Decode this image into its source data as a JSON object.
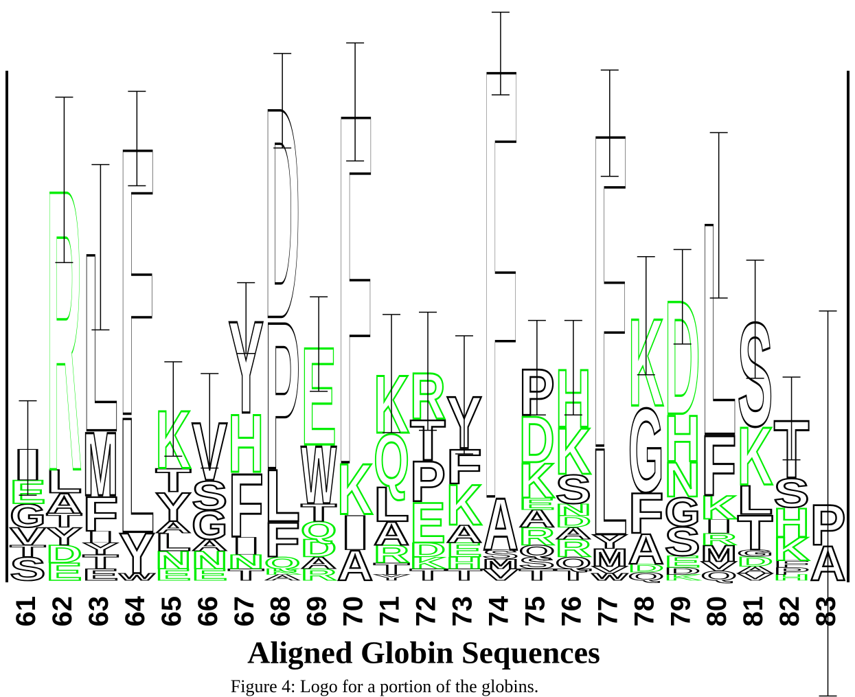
{
  "chart_data": {
    "type": "logo",
    "title": "Aligned Globin Sequences",
    "caption": "Figure 4: Logo for a portion of the globins.",
    "ylim": [
      0,
      4.32
    ],
    "positions": [
      {
        "label": "61",
        "error": 0.4,
        "letters": [
          {
            "letter": "S",
            "color": "#000000",
            "value": 0.2
          },
          {
            "letter": "T",
            "color": "#000000",
            "value": 0.1
          },
          {
            "letter": "V",
            "color": "#000000",
            "value": 0.15
          },
          {
            "letter": "G",
            "color": "#000000",
            "value": 0.2
          },
          {
            "letter": "E",
            "color": "#00ee00",
            "value": 0.2
          },
          {
            "letter": "I",
            "color": "#000000",
            "value": 0.27
          }
        ]
      },
      {
        "label": "62",
        "error": 0.7,
        "letters": [
          {
            "letter": "E",
            "color": "#00ee00",
            "value": 0.15
          },
          {
            "letter": "D",
            "color": "#00ee00",
            "value": 0.15
          },
          {
            "letter": "Y",
            "color": "#000000",
            "value": 0.15
          },
          {
            "letter": "T",
            "color": "#000000",
            "value": 0.12
          },
          {
            "letter": "A",
            "color": "#000000",
            "value": 0.17
          },
          {
            "letter": "L",
            "color": "#000000",
            "value": 0.2
          },
          {
            "letter": "R",
            "color": "#00ee00",
            "value": 2.45
          }
        ]
      },
      {
        "label": "63",
        "error": 0.7,
        "letters": [
          {
            "letter": "E",
            "color": "#000000",
            "value": 0.1
          },
          {
            "letter": "T",
            "color": "#000000",
            "value": 0.12
          },
          {
            "letter": "Y",
            "color": "#000000",
            "value": 0.1
          },
          {
            "letter": "I",
            "color": "#000000",
            "value": 0.1
          },
          {
            "letter": "F",
            "color": "#000000",
            "value": 0.3
          },
          {
            "letter": "M",
            "color": "#000000",
            "value": 0.55
          },
          {
            "letter": "L",
            "color": "#000000",
            "value": 1.55
          }
        ]
      },
      {
        "label": "64",
        "error": 0.4,
        "letters": [
          {
            "letter": "W",
            "color": "#000000",
            "value": 0.06
          },
          {
            "letter": "Y",
            "color": "#000000",
            "value": 0.35
          },
          {
            "letter": "L",
            "color": "#000000",
            "value": 1.0
          },
          {
            "letter": "F",
            "color": "#000000",
            "value": 2.33
          }
        ]
      },
      {
        "label": "65",
        "error": 0.4,
        "letters": [
          {
            "letter": "E",
            "color": "#00ee00",
            "value": 0.1
          },
          {
            "letter": "N",
            "color": "#00ee00",
            "value": 0.15
          },
          {
            "letter": "L",
            "color": "#000000",
            "value": 0.15
          },
          {
            "letter": "A",
            "color": "#000000",
            "value": 0.1
          },
          {
            "letter": "Y",
            "color": "#000000",
            "value": 0.25
          },
          {
            "letter": "T",
            "color": "#000000",
            "value": 0.2
          },
          {
            "letter": "K",
            "color": "#00ee00",
            "value": 0.5
          }
        ]
      },
      {
        "label": "66",
        "error": 0.4,
        "letters": [
          {
            "letter": "E",
            "color": "#00ee00",
            "value": 0.1
          },
          {
            "letter": "N",
            "color": "#00ee00",
            "value": 0.15
          },
          {
            "letter": "A",
            "color": "#000000",
            "value": 0.1
          },
          {
            "letter": "G",
            "color": "#000000",
            "value": 0.25
          },
          {
            "letter": "S",
            "color": "#000000",
            "value": 0.25
          },
          {
            "letter": "V",
            "color": "#000000",
            "value": 0.5
          }
        ]
      },
      {
        "label": "67",
        "error": 0.3,
        "letters": [
          {
            "letter": "T",
            "color": "#000000",
            "value": 0.1
          },
          {
            "letter": "N",
            "color": "#00ee00",
            "value": 0.12
          },
          {
            "letter": "I",
            "color": "#000000",
            "value": 0.15
          },
          {
            "letter": "F",
            "color": "#000000",
            "value": 0.55
          },
          {
            "letter": "H",
            "color": "#00ee00",
            "value": 0.5
          },
          {
            "letter": "Y",
            "color": "#000000",
            "value": 0.8
          }
        ]
      },
      {
        "label": "68",
        "error": 0.4,
        "letters": [
          {
            "letter": "A",
            "color": "#000000",
            "value": 0.05
          },
          {
            "letter": "K",
            "color": "#00ee00",
            "value": 0.05
          },
          {
            "letter": "Q",
            "color": "#00ee00",
            "value": 0.1
          },
          {
            "letter": "F",
            "color": "#000000",
            "value": 0.3
          },
          {
            "letter": "L",
            "color": "#000000",
            "value": 0.45
          },
          {
            "letter": "P",
            "color": "#000000",
            "value": 1.28
          },
          {
            "letter": "D",
            "color": "#000000",
            "value": 1.83
          }
        ]
      },
      {
        "label": "69",
        "error": 0.4,
        "letters": [
          {
            "letter": "R",
            "color": "#00ee00",
            "value": 0.1
          },
          {
            "letter": "A",
            "color": "#000000",
            "value": 0.1
          },
          {
            "letter": "D",
            "color": "#00ee00",
            "value": 0.15
          },
          {
            "letter": "Q",
            "color": "#00ee00",
            "value": 0.15
          },
          {
            "letter": "T",
            "color": "#000000",
            "value": 0.15
          },
          {
            "letter": "W",
            "color": "#000000",
            "value": 0.5
          },
          {
            "letter": "E",
            "color": "#00ee00",
            "value": 0.85
          }
        ]
      },
      {
        "label": "70",
        "error": 0.5,
        "letters": [
          {
            "letter": "A",
            "color": "#000000",
            "value": 0.26
          },
          {
            "letter": "I",
            "color": "#000000",
            "value": 0.3
          },
          {
            "letter": "K",
            "color": "#00ee00",
            "value": 0.44
          },
          {
            "letter": "F",
            "color": "#000000",
            "value": 3.05
          }
        ]
      },
      {
        "label": "71",
        "error": 0.5,
        "letters": [
          {
            "letter": "Y",
            "color": "#000000",
            "value": 0.05
          },
          {
            "letter": "T",
            "color": "#000000",
            "value": 0.1
          },
          {
            "letter": "R",
            "color": "#00ee00",
            "value": 0.15
          },
          {
            "letter": "A",
            "color": "#000000",
            "value": 0.2
          },
          {
            "letter": "L",
            "color": "#000000",
            "value": 0.3
          },
          {
            "letter": "Q",
            "color": "#00ee00",
            "value": 0.45
          },
          {
            "letter": "K",
            "color": "#00ee00",
            "value": 0.5
          }
        ]
      },
      {
        "label": "72",
        "error": 0.5,
        "letters": [
          {
            "letter": "T",
            "color": "#000000",
            "value": 0.1
          },
          {
            "letter": "K",
            "color": "#00ee00",
            "value": 0.1
          },
          {
            "letter": "D",
            "color": "#00ee00",
            "value": 0.12
          },
          {
            "letter": "E",
            "color": "#00ee00",
            "value": 0.35
          },
          {
            "letter": "P",
            "color": "#000000",
            "value": 0.35
          },
          {
            "letter": "T",
            "color": "#000000",
            "value": 0.35
          },
          {
            "letter": "R",
            "color": "#00ee00",
            "value": 0.4
          }
        ]
      },
      {
        "label": "73",
        "error": 0.5,
        "letters": [
          {
            "letter": "T",
            "color": "#000000",
            "value": 0.1
          },
          {
            "letter": "H",
            "color": "#00ee00",
            "value": 0.1
          },
          {
            "letter": "E",
            "color": "#00ee00",
            "value": 0.12
          },
          {
            "letter": "A",
            "color": "#000000",
            "value": 0.15
          },
          {
            "letter": "K",
            "color": "#00ee00",
            "value": 0.35
          },
          {
            "letter": "F",
            "color": "#000000",
            "value": 0.3
          },
          {
            "letter": "Y",
            "color": "#000000",
            "value": 0.45
          }
        ]
      },
      {
        "label": "74",
        "error": 0.35,
        "letters": [
          {
            "letter": "V",
            "color": "#000000",
            "value": 0.1
          },
          {
            "letter": "M",
            "color": "#000000",
            "value": 0.08
          },
          {
            "letter": "S",
            "color": "#000000",
            "value": 0.08
          },
          {
            "letter": "A",
            "color": "#000000",
            "value": 0.45
          },
          {
            "letter": "F",
            "color": "#000000",
            "value": 3.75
          }
        ]
      },
      {
        "label": "75",
        "error": 0.4,
        "letters": [
          {
            "letter": "T",
            "color": "#000000",
            "value": 0.1
          },
          {
            "letter": "S",
            "color": "#000000",
            "value": 0.1
          },
          {
            "letter": "Q",
            "color": "#000000",
            "value": 0.1
          },
          {
            "letter": "R",
            "color": "#00ee00",
            "value": 0.15
          },
          {
            "letter": "A",
            "color": "#000000",
            "value": 0.15
          },
          {
            "letter": "E",
            "color": "#00ee00",
            "value": 0.1
          },
          {
            "letter": "K",
            "color": "#00ee00",
            "value": 0.3
          },
          {
            "letter": "D",
            "color": "#00ee00",
            "value": 0.4
          },
          {
            "letter": "P",
            "color": "#000000",
            "value": 0.4
          }
        ]
      },
      {
        "label": "76",
        "error": 0.4,
        "letters": [
          {
            "letter": "T",
            "color": "#000000",
            "value": 0.1
          },
          {
            "letter": "Q",
            "color": "#000000",
            "value": 0.1
          },
          {
            "letter": "R",
            "color": "#00ee00",
            "value": 0.15
          },
          {
            "letter": "A",
            "color": "#000000",
            "value": 0.1
          },
          {
            "letter": "D",
            "color": "#00ee00",
            "value": 0.1
          },
          {
            "letter": "N",
            "color": "#00ee00",
            "value": 0.1
          },
          {
            "letter": "S",
            "color": "#000000",
            "value": 0.25
          },
          {
            "letter": "K",
            "color": "#00ee00",
            "value": 0.4
          },
          {
            "letter": "H",
            "color": "#00ee00",
            "value": 0.5
          }
        ]
      },
      {
        "label": "77",
        "error": 0.45,
        "letters": [
          {
            "letter": "W",
            "color": "#000000",
            "value": 0.06
          },
          {
            "letter": "V",
            "color": "#000000",
            "value": 0.06
          },
          {
            "letter": "M",
            "color": "#000000",
            "value": 0.15
          },
          {
            "letter": "Y",
            "color": "#000000",
            "value": 0.12
          },
          {
            "letter": "L",
            "color": "#000000",
            "value": 0.75
          },
          {
            "letter": "F",
            "color": "#000000",
            "value": 2.73
          }
        ]
      },
      {
        "label": "78",
        "error": 0.5,
        "letters": [
          {
            "letter": "Q",
            "color": "#000000",
            "value": 0.07
          },
          {
            "letter": "D",
            "color": "#00ee00",
            "value": 0.07
          },
          {
            "letter": "A",
            "color": "#000000",
            "value": 0.26
          },
          {
            "letter": "F",
            "color": "#000000",
            "value": 0.35
          },
          {
            "letter": "G",
            "color": "#000000",
            "value": 0.73
          },
          {
            "letter": "K",
            "color": "#00ee00",
            "value": 0.76
          }
        ]
      },
      {
        "label": "79",
        "error": 0.4,
        "letters": [
          {
            "letter": "K",
            "color": "#00ee00",
            "value": 0.05
          },
          {
            "letter": "D",
            "color": "#000000",
            "value": 0.06
          },
          {
            "letter": "E",
            "color": "#00ee00",
            "value": 0.1
          },
          {
            "letter": "S",
            "color": "#000000",
            "value": 0.25
          },
          {
            "letter": "G",
            "color": "#000000",
            "value": 0.25
          },
          {
            "letter": "N",
            "color": "#00ee00",
            "value": 0.3
          },
          {
            "letter": "H",
            "color": "#00ee00",
            "value": 0.4
          },
          {
            "letter": "D",
            "color": "#00ee00",
            "value": 0.99
          }
        ]
      },
      {
        "label": "80",
        "error": 0.7,
        "letters": [
          {
            "letter": "Q",
            "color": "#000000",
            "value": 0.08
          },
          {
            "letter": "V",
            "color": "#000000",
            "value": 0.08
          },
          {
            "letter": "M",
            "color": "#000000",
            "value": 0.14
          },
          {
            "letter": "R",
            "color": "#00ee00",
            "value": 0.1
          },
          {
            "letter": "I",
            "color": "#000000",
            "value": 0.12
          },
          {
            "letter": "K",
            "color": "#00ee00",
            "value": 0.2
          },
          {
            "letter": "F",
            "color": "#000000",
            "value": 0.52
          },
          {
            "letter": "L",
            "color": "#000000",
            "value": 1.85
          }
        ]
      },
      {
        "label": "81",
        "error": 0.5,
        "letters": [
          {
            "letter": "V",
            "color": "#000000",
            "value": 0.06
          },
          {
            "letter": "A",
            "color": "#000000",
            "value": 0.06
          },
          {
            "letter": "D",
            "color": "#00ee00",
            "value": 0.08
          },
          {
            "letter": "G",
            "color": "#000000",
            "value": 0.06
          },
          {
            "letter": "T",
            "color": "#000000",
            "value": 0.3
          },
          {
            "letter": "L",
            "color": "#000000",
            "value": 0.25
          },
          {
            "letter": "K",
            "color": "#00ee00",
            "value": 0.5
          },
          {
            "letter": "S",
            "color": "#000000",
            "value": 0.9
          }
        ]
      },
      {
        "label": "82",
        "error": 0.35,
        "letters": [
          {
            "letter": "H",
            "color": "#00ee00",
            "value": 0.05
          },
          {
            "letter": "P",
            "color": "#000000",
            "value": 0.06
          },
          {
            "letter": "F",
            "color": "#000000",
            "value": 0.06
          },
          {
            "letter": "K",
            "color": "#00ee00",
            "value": 0.2
          },
          {
            "letter": "H",
            "color": "#00ee00",
            "value": 0.25
          },
          {
            "letter": "S",
            "color": "#000000",
            "value": 0.25
          },
          {
            "letter": "T",
            "color": "#000000",
            "value": 0.5
          }
        ]
      },
      {
        "label": "83",
        "error": 1.63,
        "letters": [
          {
            "letter": "A",
            "color": "#000000",
            "value": 0.3
          },
          {
            "letter": "P",
            "color": "#000000",
            "value": 0.35
          }
        ]
      }
    ]
  }
}
